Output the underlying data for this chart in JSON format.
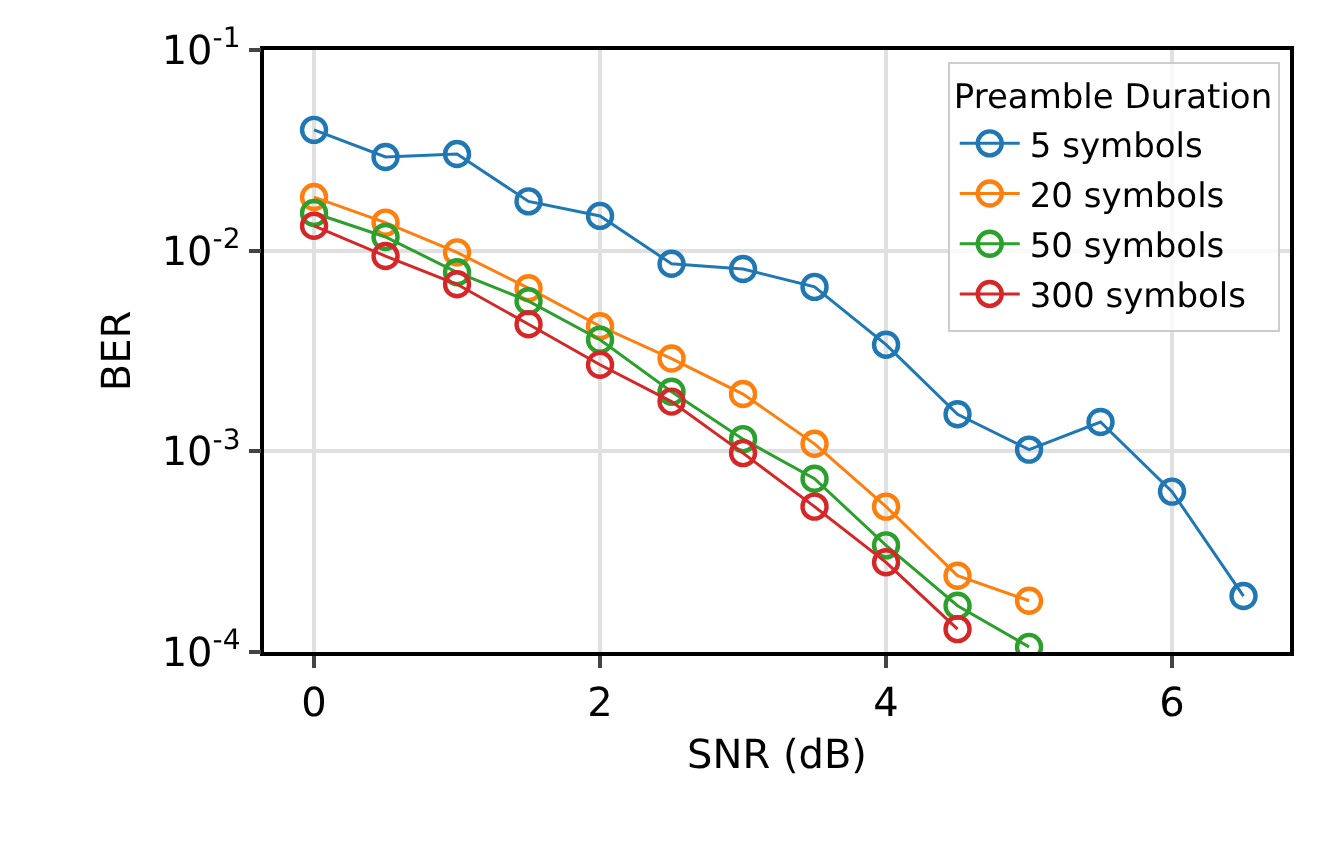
{
  "chart_data": {
    "type": "line",
    "xlabel": "SNR (dB)",
    "ylabel": "BER",
    "legend_title": "Preamble Duration",
    "x": [
      0,
      0.5,
      1,
      1.5,
      2,
      2.5,
      3,
      3.5,
      4,
      4.5,
      5,
      5.5,
      6,
      6.5
    ],
    "series": [
      {
        "name": "5 symbols",
        "color": "#1f77b4",
        "values": [
          0.04,
          0.0293,
          0.0303,
          0.0176,
          0.0149,
          0.0086,
          0.0081,
          0.0066,
          0.0034,
          0.00153,
          0.00102,
          0.0014,
          0.00063,
          0.00019
        ]
      },
      {
        "name": "20 symbols",
        "color": "#ff7f0e",
        "values": [
          0.0185,
          0.0138,
          0.0098,
          0.0065,
          0.0042,
          0.0029,
          0.00193,
          0.00109,
          0.00053,
          0.00024,
          0.00018,
          null,
          null,
          null
        ]
      },
      {
        "name": "50 symbols",
        "color": "#2ca02c",
        "values": [
          0.0154,
          0.0117,
          0.0078,
          0.0056,
          0.0036,
          0.00198,
          0.00115,
          0.00073,
          0.00034,
          0.00017,
          0.000106,
          null,
          null,
          null
        ]
      },
      {
        "name": "300 symbols",
        "color": "#d62728",
        "values": [
          0.0133,
          0.0094,
          0.0068,
          0.0043,
          0.0027,
          0.00177,
          0.00098,
          0.00053,
          0.00028,
          0.00013,
          null,
          null,
          null,
          null
        ]
      }
    ],
    "log": "y",
    "xlim": [
      -0.35,
      6.825
    ],
    "ylim": [
      0.0001,
      0.1
    ],
    "xticks": [
      0,
      2,
      4,
      6
    ],
    "yticks": [
      {
        "value": 0.0001,
        "label": "10$^{-4}$"
      },
      {
        "value": 0.001,
        "label": "10$^{-3}$"
      },
      {
        "value": 0.01,
        "label": "10$^{-2}$"
      },
      {
        "value": 0.1,
        "label": "10$^{-1}$"
      }
    ],
    "grid": true,
    "legend": "top right",
    "marker": "circle",
    "line_style": "solid"
  }
}
